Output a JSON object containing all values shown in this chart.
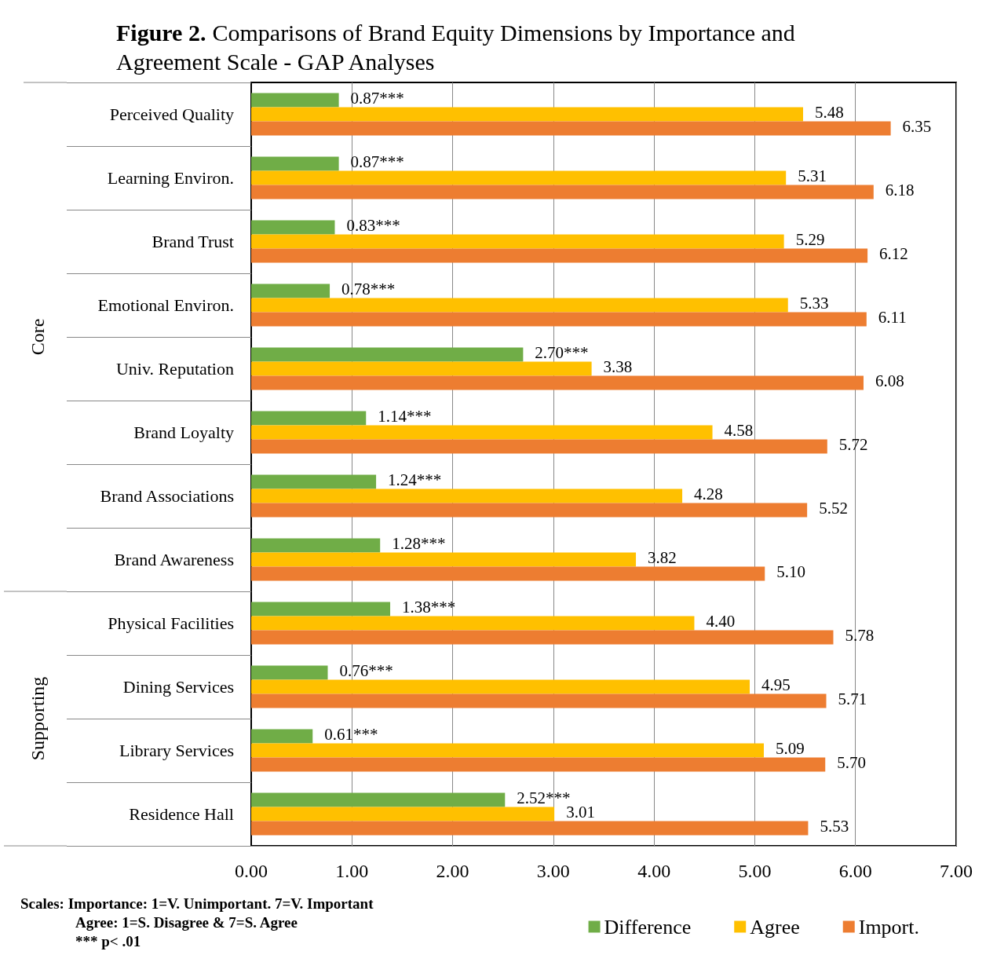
{
  "chart_data": {
    "type": "bar",
    "orientation": "horizontal",
    "title": "**Figure 2.** Comparisons of Brand Equity Dimensions by Importance and Agreement Scale - GAP Analyses",
    "categories": [
      "Perceived Quality",
      "Learning Environ.",
      "Brand Trust",
      "Emotional Environ.",
      "Univ. Reputation",
      "Brand Loyalty",
      "Brand Associations",
      "Brand Awareness",
      "Physical Facilities",
      "Dining Services",
      "Library Services",
      "Residence Hall"
    ],
    "series": [
      {
        "name": "Difference",
        "color": "#70ad47",
        "values": [
          0.87,
          0.87,
          0.83,
          0.78,
          2.7,
          1.14,
          1.24,
          1.28,
          1.38,
          0.76,
          0.61,
          2.52
        ],
        "value_labels": [
          "0.87***",
          "0.87***",
          "0.83***",
          "0.78***",
          "2.70***",
          "1.14***",
          "1.24***",
          "1.28***",
          "1.38***",
          "0.76***",
          "0.61***",
          "2.52***"
        ]
      },
      {
        "name": "Agree",
        "color": "#ffc000",
        "values": [
          5.48,
          5.31,
          5.29,
          5.33,
          3.38,
          4.58,
          4.28,
          3.82,
          4.4,
          4.95,
          5.09,
          3.01
        ],
        "value_labels": [
          "5.48",
          "5.31",
          "5.29",
          "5.33",
          "3.38",
          "4.58",
          "4.28",
          "3.82",
          "4.40",
          "4.95",
          "5.09",
          "3.01"
        ]
      },
      {
        "name": "Import.",
        "color": "#ed7d31",
        "values": [
          6.35,
          6.18,
          6.12,
          6.11,
          6.08,
          5.72,
          5.52,
          5.1,
          5.78,
          5.71,
          5.7,
          5.53
        ],
        "value_labels": [
          "6.35",
          "6.18",
          "6.12",
          "6.11",
          "6.08",
          "5.72",
          "5.52",
          "5.10",
          "5.78",
          "5.71",
          "5.70",
          "5.53"
        ]
      }
    ],
    "xlim": [
      0,
      7
    ],
    "xticks": [
      {
        "value": 0,
        "label": "0.00"
      },
      {
        "value": 1,
        "label": "1.00"
      },
      {
        "value": 2,
        "label": "2.00"
      },
      {
        "value": 3,
        "label": "3.00"
      },
      {
        "value": 4,
        "label": "4.00"
      },
      {
        "value": 5,
        "label": "5.00"
      },
      {
        "value": 6,
        "label": "6.00"
      },
      {
        "value": 7,
        "label": "7.00"
      }
    ],
    "grid": "x",
    "legend": "bottom right",
    "annotations": [
      "Core",
      "Supporting",
      "Scales: Importance: 1=V. Unimportant. 7=V. Important",
      "Agree: 1=S. Disagree & 7=S. Agree",
      "*** p< .01"
    ]
  }
}
